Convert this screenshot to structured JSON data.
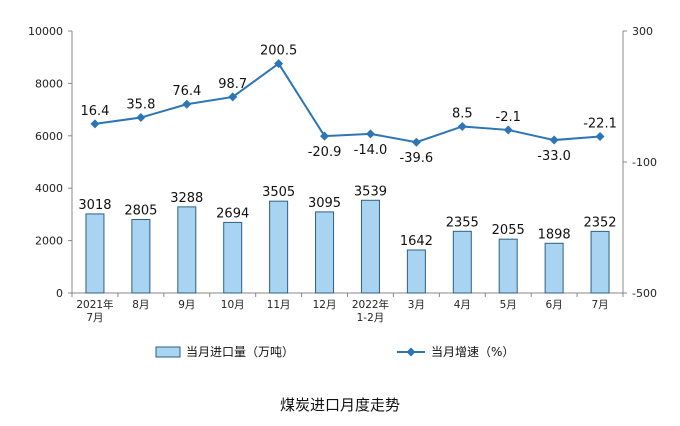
{
  "caption": "煤炭进口月度走势",
  "chart_data": {
    "type": "bar+line",
    "categories": [
      [
        "2021年",
        "7月"
      ],
      [
        "8月"
      ],
      [
        "9月"
      ],
      [
        "10月"
      ],
      [
        "11月"
      ],
      [
        "12月"
      ],
      [
        "2022年",
        "1-2月"
      ],
      [
        "3月"
      ],
      [
        "4月"
      ],
      [
        "5月"
      ],
      [
        "6月"
      ],
      [
        "7月"
      ]
    ],
    "series": [
      {
        "name": "当月进口量（万吨）",
        "type": "bar",
        "axis": "left",
        "values": [
          3018,
          2805,
          3288,
          2694,
          3505,
          3095,
          3539,
          1642,
          2355,
          2055,
          1898,
          2352
        ]
      },
      {
        "name": "当月增速（%）",
        "type": "line",
        "axis": "right",
        "values": [
          16.4,
          35.8,
          76.4,
          98.7,
          200.5,
          -20.9,
          -14.0,
          -39.6,
          8.5,
          -2.1,
          -33.0,
          -22.1
        ],
        "labels": [
          "16.4",
          "35.8",
          "76.4",
          "98.7",
          "200.5",
          "-20.9",
          "-14.0",
          "-39.6",
          "8.5",
          "-2.1",
          "-33.0",
          "-22.1"
        ]
      }
    ],
    "y_left": {
      "ylim": [
        0,
        10000
      ],
      "ticks": [
        "0",
        "2000",
        "4000",
        "6000",
        "8000",
        "10000"
      ]
    },
    "y_right": {
      "ylim": [
        -500,
        300
      ],
      "ticks": [
        "300",
        "-100",
        "-500"
      ]
    },
    "legend": "bottom",
    "grid": false,
    "colors": {
      "bar_fill": "#a8d4f2",
      "bar_stroke": "#2f5f86",
      "line": "#2e75b6",
      "marker": "#2e75b6"
    }
  }
}
